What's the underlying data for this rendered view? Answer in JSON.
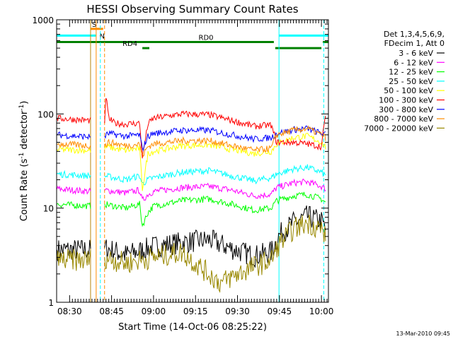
{
  "chart_data": {
    "type": "line",
    "title": "HESSI Observing Summary Count Rates",
    "xlabel": "Start Time (14-Oct-06 08:25:22)",
    "ylabel_main": "Count Rate (s",
    "ylabel_sup1": "-1",
    "ylabel_mid": " detector",
    "ylabel_sup2": "-1",
    "ylabel_end": ")",
    "yscale": "log",
    "ylim": [
      1,
      1000
    ],
    "xlim": [
      "08:25:22",
      "10:02:30"
    ],
    "x_ticks": [
      "08:30",
      "08:45",
      "09:00",
      "09:15",
      "09:30",
      "09:45",
      "10:00"
    ],
    "y_ticks": [
      {
        "value": 1,
        "label": "1"
      },
      {
        "value": 10,
        "label": "10"
      },
      {
        "value": 100,
        "label": "100"
      },
      {
        "value": 1000,
        "label": "1000"
      }
    ],
    "footer_date": "13-Mar-2010 09:45",
    "legend": {
      "placement": "right",
      "header": [
        "Det 1,3,4,5,6,9,",
        "FDecim 1, Att 0"
      ]
    },
    "series": [
      {
        "name": "3 - 6 keV",
        "color": "#000000",
        "x": [
          "08:25:30",
          "08:37:30",
          "08:37:31",
          "08:42:30",
          "08:42:31",
          "08:50:00",
          "08:55:00",
          "09:00:00",
          "09:10:00",
          "09:20:00",
          "09:28:00",
          "09:36:00",
          "09:42:00",
          "09:45:00",
          "09:50:00",
          "09:55:00",
          "10:00:00",
          "10:01:30"
        ],
        "y": [
          3.6,
          3.6,
          null,
          null,
          3.8,
          3.2,
          3.5,
          3.9,
          4.3,
          4.6,
          3.7,
          3.1,
          3.4,
          5.2,
          7.0,
          8.2,
          7.2,
          6.0
        ]
      },
      {
        "name": "6 - 12 keV",
        "color": "#ff00ff",
        "x": [
          "08:25:30",
          "08:37:30",
          "08:37:31",
          "08:42:30",
          "08:42:31",
          "08:50:00",
          "08:55:00",
          "08:56:00",
          "08:58:00",
          "09:00:00",
          "09:10:00",
          "09:20:00",
          "09:28:00",
          "09:36:00",
          "09:42:00",
          "09:44:00",
          "09:50:00",
          "09:55:00",
          "10:00:00",
          "10:01:30"
        ],
        "y": [
          16,
          15,
          null,
          null,
          15.5,
          14.5,
          15.5,
          12,
          14,
          15,
          16.5,
          17,
          15.5,
          13.5,
          14,
          16.5,
          18.5,
          19,
          17,
          16
        ]
      },
      {
        "name": "12 - 25 keV",
        "color": "#00ff00",
        "x": [
          "08:25:30",
          "08:37:30",
          "08:37:31",
          "08:42:30",
          "08:42:31",
          "08:50:00",
          "08:55:00",
          "08:56:00",
          "08:58:00",
          "09:00:00",
          "09:10:00",
          "09:20:00",
          "09:28:00",
          "09:36:00",
          "09:42:00",
          "09:44:00",
          "09:50:00",
          "09:55:00",
          "10:00:00",
          "10:01:30"
        ],
        "y": [
          11,
          10.5,
          null,
          null,
          11,
          10,
          11,
          6.5,
          9,
          10.5,
          12,
          12.5,
          11,
          9.5,
          10,
          12,
          13.5,
          14,
          12.5,
          11.5
        ]
      },
      {
        "name": "25 - 50 keV",
        "color": "#00ffff",
        "x": [
          "08:25:30",
          "08:37:30",
          "08:37:31",
          "08:42:30",
          "08:42:31",
          "08:50:00",
          "08:55:00",
          "08:56:00",
          "08:58:00",
          "09:00:00",
          "09:10:00",
          "09:20:00",
          "09:28:00",
          "09:36:00",
          "09:42:00",
          "09:44:00",
          "09:50:00",
          "09:55:00",
          "10:00:00",
          "10:01:30"
        ],
        "y": [
          23,
          22,
          null,
          null,
          22,
          20,
          22,
          18,
          20,
          21,
          24,
          25,
          22,
          19.5,
          21,
          23,
          26,
          27,
          24,
          22
        ]
      },
      {
        "name": "50 - 100 keV",
        "color": "#ffff00",
        "x": [
          "08:25:30",
          "08:37:30",
          "08:37:31",
          "08:42:30",
          "08:42:31",
          "08:43:30",
          "08:46:00",
          "08:50:00",
          "08:55:00",
          "08:56:00",
          "08:58:00",
          "09:00:00",
          "09:10:00",
          "09:20:00",
          "09:28:00",
          "09:36:00",
          "09:42:00",
          "09:44:00",
          "09:50:00",
          "09:55:00",
          "10:00:00",
          "10:01:30"
        ],
        "y": [
          42,
          41,
          null,
          null,
          42,
          45,
          43,
          41,
          43,
          16,
          38,
          40,
          46,
          47,
          42,
          38,
          40,
          48,
          56,
          58,
          50,
          44
        ]
      },
      {
        "name": "100 - 300 keV",
        "color": "#ff0000",
        "x": [
          "08:25:30",
          "08:37:30",
          "08:37:31",
          "08:42:30",
          "08:42:31",
          "08:43:00",
          "08:44:00",
          "08:46:00",
          "08:50:00",
          "08:55:00",
          "08:56:00",
          "08:58:00",
          "09:00:00",
          "09:10:00",
          "09:20:00",
          "09:28:00",
          "09:36:00",
          "09:42:00",
          "09:44:00",
          "09:50:00",
          "09:55:00",
          "10:00:00",
          "10:01:30"
        ],
        "y": [
          90,
          85,
          null,
          null,
          80,
          155,
          90,
          80,
          78,
          80,
          35,
          78,
          90,
          100,
          98,
          85,
          74,
          76,
          50,
          50,
          48,
          45,
          100
        ]
      },
      {
        "name": "300 - 800 keV",
        "color": "#0000ff",
        "x": [
          "08:25:30",
          "08:37:30",
          "08:37:31",
          "08:42:30",
          "08:42:31",
          "08:44:00",
          "08:50:00",
          "08:55:00",
          "08:56:00",
          "08:58:00",
          "09:00:00",
          "09:10:00",
          "09:20:00",
          "09:28:00",
          "09:36:00",
          "09:42:00",
          "09:44:00",
          "09:50:00",
          "09:55:00",
          "10:00:00",
          "10:01:30"
        ],
        "y": [
          60,
          57,
          null,
          null,
          58,
          62,
          58,
          60,
          42,
          58,
          62,
          67,
          67,
          60,
          54,
          56,
          62,
          68,
          70,
          62,
          60
        ]
      },
      {
        "name": "800 - 7000 keV",
        "color": "#ff8c00",
        "x": [
          "08:25:30",
          "08:37:30",
          "08:37:31",
          "08:42:30",
          "08:42:31",
          "08:44:00",
          "08:50:00",
          "08:55:00",
          "08:56:00",
          "08:58:00",
          "09:00:00",
          "09:10:00",
          "09:20:00",
          "09:28:00",
          "09:36:00",
          "09:42:00",
          "09:44:00",
          "09:50:00",
          "09:55:00",
          "10:00:00",
          "10:01:30"
        ],
        "y": [
          48,
          46,
          null,
          null,
          46,
          50,
          46,
          48,
          36,
          45,
          48,
          52,
          52,
          46,
          41,
          43,
          60,
          67,
          70,
          60,
          56
        ]
      },
      {
        "name": "7000 - 20000 keV",
        "color": "#998800",
        "x": [
          "08:25:30",
          "08:37:30",
          "08:37:31",
          "08:42:30",
          "08:42:31",
          "08:50:00",
          "08:55:00",
          "09:00:00",
          "09:10:00",
          "09:18:00",
          "09:24:00",
          "09:30:00",
          "09:36:00",
          "09:42:00",
          "09:45:00",
          "09:50:00",
          "09:55:00",
          "10:00:00",
          "10:01:30"
        ],
        "y": [
          2.8,
          2.8,
          null,
          null,
          3.0,
          2.6,
          2.8,
          3.0,
          3.4,
          2.2,
          1.6,
          2.0,
          2.4,
          2.8,
          4.2,
          6.0,
          7.0,
          6.0,
          5.0
        ]
      }
    ],
    "flags": [
      {
        "name": "S",
        "color": "#ff8c00",
        "y": 800,
        "segments": [
          [
            "08:37:30",
            "08:42:00"
          ]
        ]
      },
      {
        "name": "N",
        "color": "#00ffff",
        "y": 680,
        "segments": [
          [
            "08:25:30",
            "08:39:30"
          ],
          [
            "09:44:50",
            "10:02:30"
          ]
        ]
      },
      {
        "name": "RD0",
        "color": "#008000",
        "y": 580,
        "segments": [
          [
            "08:25:30",
            "09:43:00"
          ],
          [
            "10:00:30",
            "10:02:30"
          ]
        ]
      },
      {
        "name": "RD4",
        "color": "#008000",
        "y": 500,
        "segments": [
          [
            "08:56:00",
            "08:58:30"
          ],
          [
            "09:43:30",
            "10:00:00"
          ]
        ]
      }
    ],
    "vlines": [
      {
        "x": "08:37:30",
        "color": "#b8860b",
        "style": "solid"
      },
      {
        "x": "08:39:30",
        "color": "#ff8c00",
        "style": "solid"
      },
      {
        "x": "08:41:00",
        "color": "#00ffff",
        "style": "dashed"
      },
      {
        "x": "08:42:30",
        "color": "#ff8c00",
        "style": "dashed"
      },
      {
        "x": "09:44:50",
        "color": "#00ffff",
        "style": "solid"
      },
      {
        "x": "10:00:50",
        "color": "#00ffff",
        "style": "dashed"
      }
    ]
  }
}
